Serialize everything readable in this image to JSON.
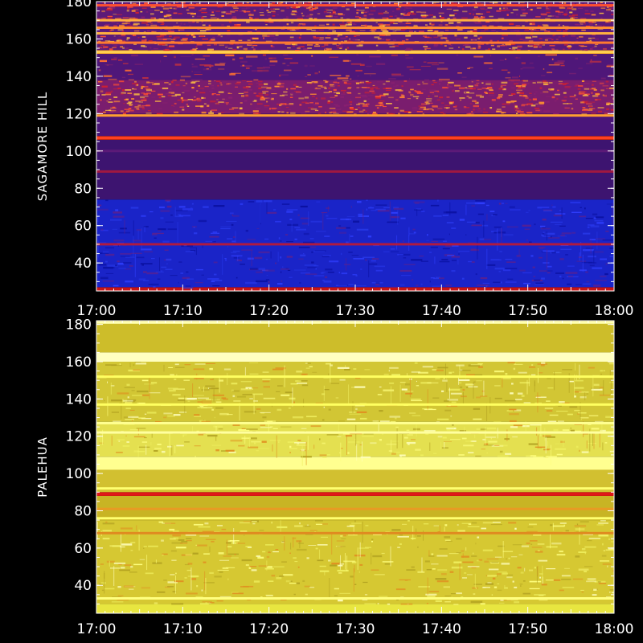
{
  "chart_data": [
    {
      "type": "heatmap",
      "ylabel": "SAGAMORE HILL",
      "xlim": [
        "17:00",
        "18:00"
      ],
      "ylim": [
        25,
        180
      ],
      "x_ticks": [
        "17:00",
        "17:10",
        "17:20",
        "17:30",
        "17:40",
        "17:50",
        "18:00"
      ],
      "y_ticks": [
        40,
        60,
        80,
        100,
        120,
        140,
        160,
        180
      ],
      "bands": [
        {
          "from": 25,
          "to": 27,
          "color": "#c81414"
        },
        {
          "from": 27,
          "to": 74,
          "color": "#1a24c8",
          "texture": "blue"
        },
        {
          "from": 74,
          "to": 106,
          "color": "#3d1470"
        },
        {
          "from": 106,
          "to": 108,
          "color": "#e03010"
        },
        {
          "from": 108,
          "to": 120,
          "color": "#4a157a"
        },
        {
          "from": 120,
          "to": 138,
          "color": "#7a1d6e",
          "texture": "speckle"
        },
        {
          "from": 138,
          "to": 152,
          "color": "#4f1779",
          "texture": "light"
        },
        {
          "from": 152,
          "to": 154,
          "color": "#f0a028"
        },
        {
          "from": 154,
          "to": 180,
          "color": "#5c1a78",
          "texture": "speckle"
        }
      ],
      "lines": [
        {
          "y": 50,
          "color": "#b01a40"
        },
        {
          "y": 89,
          "color": "#a01840"
        },
        {
          "y": 100,
          "color": "#5c1a78"
        },
        {
          "y": 107,
          "color": "#ff4020"
        },
        {
          "y": 119,
          "color": "#ffa030"
        },
        {
          "y": 153,
          "color": "#ffd050"
        },
        {
          "y": 158,
          "color": "#ff7a30"
        },
        {
          "y": 163,
          "color": "#ffb040"
        },
        {
          "y": 166,
          "color": "#ff9030"
        },
        {
          "y": 170,
          "color": "#ffb040"
        },
        {
          "y": 178,
          "color": "#ff5030"
        }
      ]
    },
    {
      "type": "heatmap",
      "ylabel": "PALEHUA",
      "xlim": [
        "17:00",
        "18:00"
      ],
      "ylim": [
        25,
        182
      ],
      "x_ticks": [
        "17:00",
        "17:10",
        "17:20",
        "17:30",
        "17:40",
        "17:50",
        "18:00"
      ],
      "y_ticks": [
        40,
        60,
        80,
        100,
        120,
        140,
        160,
        180
      ],
      "bands": [
        {
          "from": 25,
          "to": 30,
          "color": "#e8e640"
        },
        {
          "from": 30,
          "to": 75,
          "color": "#d6c832",
          "texture": "yellow"
        },
        {
          "from": 75,
          "to": 88,
          "color": "#c8b424"
        },
        {
          "from": 88,
          "to": 90,
          "color": "#e01818"
        },
        {
          "from": 90,
          "to": 102,
          "color": "#d2c030"
        },
        {
          "from": 102,
          "to": 109,
          "color": "#ffff90"
        },
        {
          "from": 109,
          "to": 128,
          "color": "#e4e050",
          "texture": "yellow"
        },
        {
          "from": 128,
          "to": 160,
          "color": "#d2c634",
          "texture": "yellow"
        },
        {
          "from": 160,
          "to": 165,
          "color": "#ffffc0"
        },
        {
          "from": 165,
          "to": 182,
          "color": "#cdbd2a"
        }
      ],
      "lines": [
        {
          "y": 33,
          "color": "#ffff80"
        },
        {
          "y": 68,
          "color": "#e08a20"
        },
        {
          "y": 76,
          "color": "#ffff70"
        },
        {
          "y": 81,
          "color": "#e89a24"
        },
        {
          "y": 92,
          "color": "#ffff70"
        },
        {
          "y": 122,
          "color": "#ffffa0"
        },
        {
          "y": 127,
          "color": "#ffff90"
        },
        {
          "y": 137,
          "color": "#ffff60"
        },
        {
          "y": 152,
          "color": "#ffff60"
        },
        {
          "y": 181,
          "color": "#ffffb0"
        }
      ]
    }
  ]
}
